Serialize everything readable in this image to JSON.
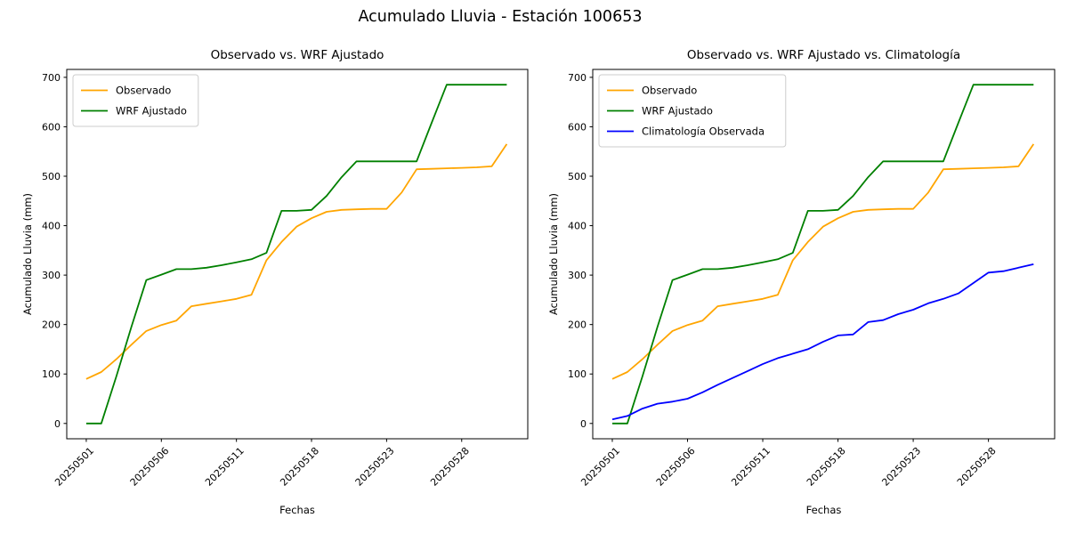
{
  "figure": {
    "title": "Acumulado Lluvia - Estación 100653",
    "background": "#ffffff",
    "text_color": "#000000"
  },
  "chart_data": [
    {
      "type": "line",
      "title": "Observado vs. WRF Ajustado",
      "xlabel": "Fechas",
      "ylabel": "Acumulado Lluvia (mm)",
      "xlim": [
        -1.3,
        29.4
      ],
      "ylim": [
        -31,
        716
      ],
      "yticks": [
        0,
        100,
        200,
        300,
        400,
        500,
        600,
        700
      ],
      "xtick_positions": [
        0,
        5,
        10,
        15,
        20,
        25
      ],
      "xtick_labels": [
        "20250501",
        "20250506",
        "20250511",
        "20250518",
        "20250523",
        "20250528"
      ],
      "grid": false,
      "legend_position": "upper-left",
      "legend_labels": [
        "Observado",
        "WRF Ajustado"
      ],
      "series": [
        {
          "name": "Observado",
          "color": "#FFA500",
          "values": [
            90,
            104,
            130,
            159,
            187,
            199,
            208,
            237,
            242,
            247,
            252,
            260,
            330,
            367,
            398,
            415,
            428,
            432,
            433,
            434,
            434,
            467,
            514,
            515,
            516,
            517,
            518,
            520,
            565
          ]
        },
        {
          "name": "WRF Ajustado",
          "color": "#008000",
          "values": [
            0,
            0,
            95,
            195,
            290,
            301,
            312,
            312,
            315,
            320,
            326,
            332,
            345,
            430,
            430,
            432,
            460,
            498,
            530,
            530,
            530,
            530,
            530,
            608,
            685,
            685,
            685,
            685,
            685
          ]
        }
      ]
    },
    {
      "type": "line",
      "title": "Observado vs. WRF Ajustado vs. Climatología",
      "xlabel": "Fechas",
      "ylabel": "Acumulado Lluvia (mm)",
      "xlim": [
        -1.3,
        29.4
      ],
      "ylim": [
        -31,
        716
      ],
      "yticks": [
        0,
        100,
        200,
        300,
        400,
        500,
        600,
        700
      ],
      "xtick_positions": [
        0,
        5,
        10,
        15,
        20,
        25
      ],
      "xtick_labels": [
        "20250501",
        "20250506",
        "20250511",
        "20250518",
        "20250523",
        "20250528"
      ],
      "grid": false,
      "legend_position": "upper-left",
      "legend_labels": [
        "Observado",
        "WRF Ajustado",
        "Climatología Observada"
      ],
      "series": [
        {
          "name": "Observado",
          "color": "#FFA500",
          "values": [
            90,
            104,
            130,
            159,
            187,
            199,
            208,
            237,
            242,
            247,
            252,
            260,
            330,
            367,
            398,
            415,
            428,
            432,
            433,
            434,
            434,
            467,
            514,
            515,
            516,
            517,
            518,
            520,
            565
          ]
        },
        {
          "name": "WRF Ajustado",
          "color": "#008000",
          "values": [
            0,
            0,
            95,
            195,
            290,
            301,
            312,
            312,
            315,
            320,
            326,
            332,
            345,
            430,
            430,
            432,
            460,
            498,
            530,
            530,
            530,
            530,
            530,
            608,
            685,
            685,
            685,
            685,
            685
          ]
        },
        {
          "name": "Climatología Observada",
          "color": "#0000FF",
          "values": [
            8,
            15,
            30,
            40,
            44,
            50,
            63,
            78,
            92,
            106,
            120,
            132,
            141,
            150,
            165,
            178,
            180,
            205,
            209,
            221,
            230,
            243,
            252,
            263,
            284,
            305,
            308,
            315,
            322
          ]
        }
      ]
    }
  ]
}
